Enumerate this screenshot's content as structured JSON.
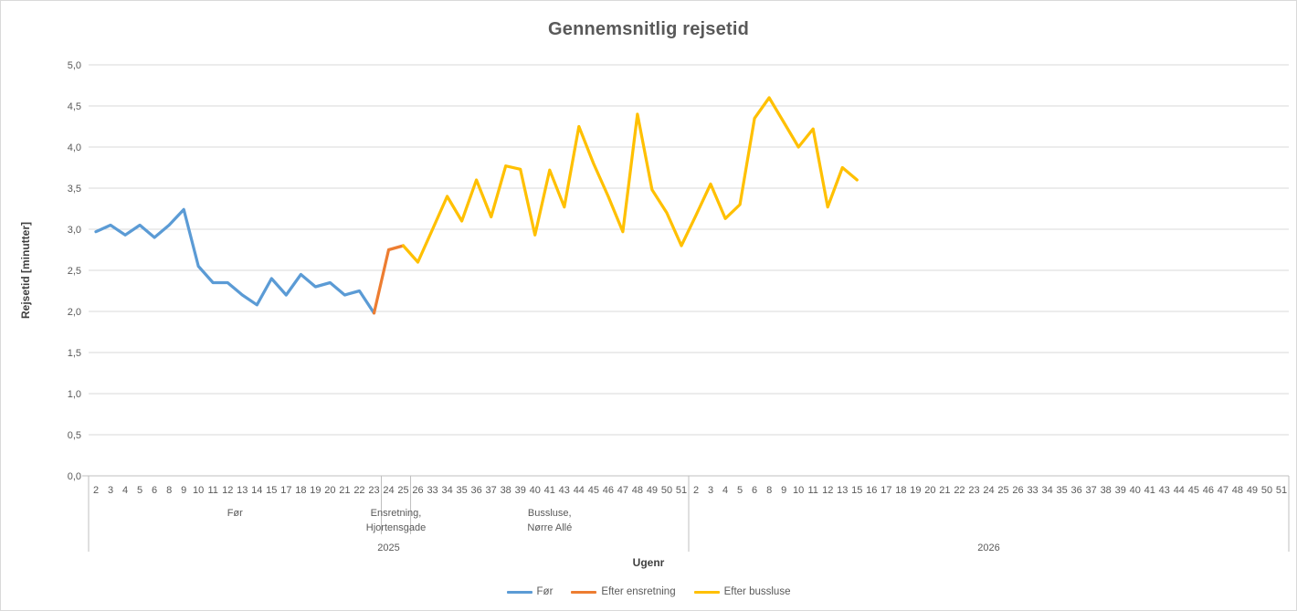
{
  "chart_data": {
    "type": "line",
    "title": "Gennemsnitlig rejsetid",
    "xlabel": "Ugenr",
    "ylabel": "Rejsetid [minutter]",
    "ylim": [
      0,
      5
    ],
    "grid": true,
    "legend_position": "bottom",
    "decimal_separator": ",",
    "y_tick_labels": [
      "0,0",
      "0,5",
      "1,0",
      "1,5",
      "2,0",
      "2,5",
      "3,0",
      "3,5",
      "4,0",
      "4,5",
      "5,0"
    ],
    "colors": {
      "text": "#595959",
      "gridline": "#d9d9d9",
      "axis": "#bfbfbf"
    },
    "x_axis": {
      "weeks": [
        "2",
        "3",
        "4",
        "5",
        "6",
        "8",
        "9",
        "10",
        "11",
        "12",
        "13",
        "14",
        "15",
        "17",
        "18",
        "19",
        "20",
        "21",
        "22",
        "23",
        "24",
        "25",
        "26",
        "33",
        "34",
        "35",
        "36",
        "37",
        "38",
        "39",
        "40",
        "41",
        "43",
        "44",
        "45",
        "46",
        "47",
        "48",
        "49",
        "50",
        "51",
        "2",
        "3",
        "4",
        "5",
        "6",
        "8",
        "9",
        "10",
        "11",
        "12",
        "13",
        "15",
        "16",
        "17",
        "18",
        "19",
        "20",
        "21",
        "22",
        "23",
        "24",
        "25",
        "26",
        "33",
        "34",
        "35",
        "36",
        "37",
        "38",
        "39",
        "40",
        "41",
        "43",
        "44",
        "45",
        "46",
        "47",
        "48",
        "49",
        "50",
        "51"
      ],
      "groups": [
        {
          "lines": [
            "Før"
          ],
          "start": 0,
          "end": 19
        },
        {
          "lines": [
            "Ensretning,",
            "Hjortensgade"
          ],
          "start": 20,
          "end": 21
        },
        {
          "lines": [
            "Bussluse,",
            "Nørre Allé"
          ],
          "start": 22,
          "end": 40
        }
      ],
      "years": [
        {
          "label": "2025",
          "start": 0,
          "end": 40
        },
        {
          "label": "2026",
          "start": 41,
          "end": 81
        }
      ]
    },
    "series": [
      {
        "name": "Før",
        "color": "#5B9BD5",
        "start_index": 0,
        "values": [
          2.97,
          3.05,
          2.93,
          3.05,
          2.9,
          3.05,
          3.24,
          2.55,
          2.35,
          2.35,
          2.2,
          2.08,
          2.4,
          2.2,
          2.45,
          2.3,
          2.35,
          2.2,
          2.25,
          1.98
        ]
      },
      {
        "name": "Efter ensretning",
        "color": "#ED7D31",
        "start_index": 19,
        "values": [
          1.98,
          2.75,
          2.8
        ]
      },
      {
        "name": "Efter bussluse",
        "color": "#FFC000",
        "start_index": 21,
        "values": [
          2.8,
          2.6,
          3.0,
          3.4,
          3.1,
          3.6,
          3.15,
          3.77,
          3.73,
          2.93,
          3.72,
          3.27,
          4.25,
          3.8,
          3.4,
          2.97,
          4.4,
          3.48,
          3.2,
          2.8,
          3.17,
          3.55,
          3.13,
          3.3,
          4.35,
          4.6,
          4.3,
          4.0,
          4.22,
          3.27,
          3.75,
          3.6
        ]
      }
    ]
  }
}
